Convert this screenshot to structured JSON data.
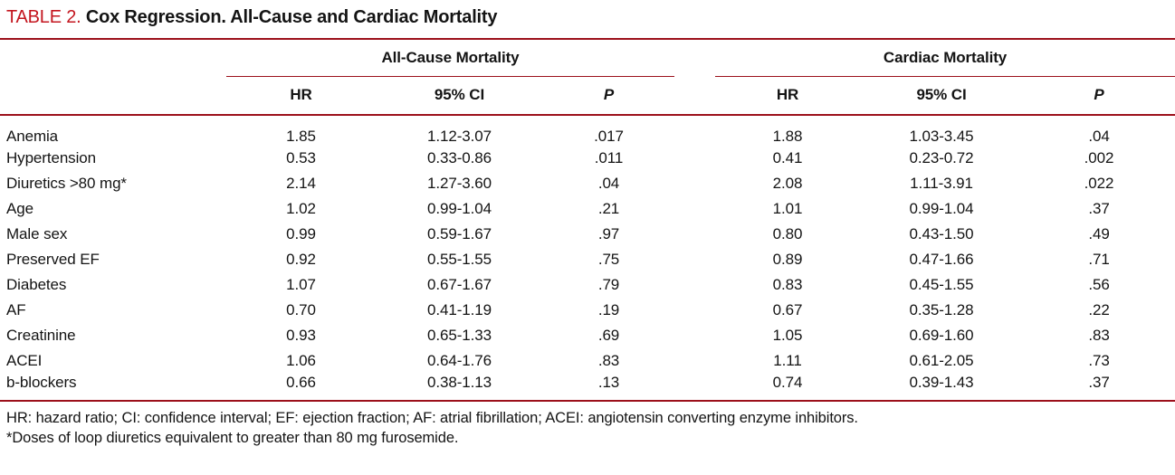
{
  "title": {
    "tag": "TABLE 2.",
    "text": " Cox Regression. All-Cause and Cardiac Mortality"
  },
  "colors": {
    "rule_red": "#9c101b",
    "title_red": "#c4161f",
    "text_ink": "#141414"
  },
  "table": {
    "groups": [
      {
        "label": "All-Cause Mortality"
      },
      {
        "label": "Cardiac Mortality"
      }
    ],
    "columns": [
      "HR",
      "95% CI",
      "P"
    ],
    "rows": [
      {
        "label": "Anemia",
        "all_cause": {
          "hr": "1.85",
          "ci": "1.12-3.07",
          "p": ".017"
        },
        "cardiac": {
          "hr": "1.88",
          "ci": "1.03-3.45",
          "p": ".04"
        }
      },
      {
        "label": "Hypertension",
        "all_cause": {
          "hr": "0.53",
          "ci": "0.33-0.86",
          "p": ".011"
        },
        "cardiac": {
          "hr": "0.41",
          "ci": "0.23-0.72",
          "p": ".002"
        }
      },
      {
        "label": "Diuretics >80 mg*",
        "all_cause": {
          "hr": "2.14",
          "ci": "1.27-3.60",
          "p": ".04"
        },
        "cardiac": {
          "hr": "2.08",
          "ci": "1.11-3.91",
          "p": ".022"
        }
      },
      {
        "label": "Age",
        "all_cause": {
          "hr": "1.02",
          "ci": "0.99-1.04",
          "p": ".21"
        },
        "cardiac": {
          "hr": "1.01",
          "ci": "0.99-1.04",
          "p": ".37"
        }
      },
      {
        "label": "Male sex",
        "all_cause": {
          "hr": "0.99",
          "ci": "0.59-1.67",
          "p": ".97"
        },
        "cardiac": {
          "hr": "0.80",
          "ci": "0.43-1.50",
          "p": ".49"
        }
      },
      {
        "label": "Preserved EF",
        "all_cause": {
          "hr": "0.92",
          "ci": "0.55-1.55",
          "p": ".75"
        },
        "cardiac": {
          "hr": "0.89",
          "ci": "0.47-1.66",
          "p": ".71"
        }
      },
      {
        "label": "Diabetes",
        "all_cause": {
          "hr": "1.07",
          "ci": "0.67-1.67",
          "p": ".79"
        },
        "cardiac": {
          "hr": "0.83",
          "ci": "0.45-1.55",
          "p": ".56"
        }
      },
      {
        "label": "AF",
        "all_cause": {
          "hr": "0.70",
          "ci": "0.41-1.19",
          "p": ".19"
        },
        "cardiac": {
          "hr": "0.67",
          "ci": "0.35-1.28",
          "p": ".22"
        }
      },
      {
        "label": "Creatinine",
        "all_cause": {
          "hr": "0.93",
          "ci": "0.65-1.33",
          "p": ".69"
        },
        "cardiac": {
          "hr": "1.05",
          "ci": "0.69-1.60",
          "p": ".83"
        }
      },
      {
        "label": "ACEI",
        "all_cause": {
          "hr": "1.06",
          "ci": "0.64-1.76",
          "p": ".83"
        },
        "cardiac": {
          "hr": "1.11",
          "ci": "0.61-2.05",
          "p": ".73"
        }
      },
      {
        "label": "b-blockers",
        "all_cause": {
          "hr": "0.66",
          "ci": "0.38-1.13",
          "p": ".13"
        },
        "cardiac": {
          "hr": "0.74",
          "ci": "0.39-1.43",
          "p": ".37"
        }
      }
    ]
  },
  "footnotes": [
    "HR: hazard ratio; CI: confidence interval; EF: ejection fraction; AF: atrial fibrillation; ACEI: angiotensin converting enzyme inhibitors.",
    "*Doses of loop diuretics equivalent to greater than 80 mg furosemide."
  ]
}
